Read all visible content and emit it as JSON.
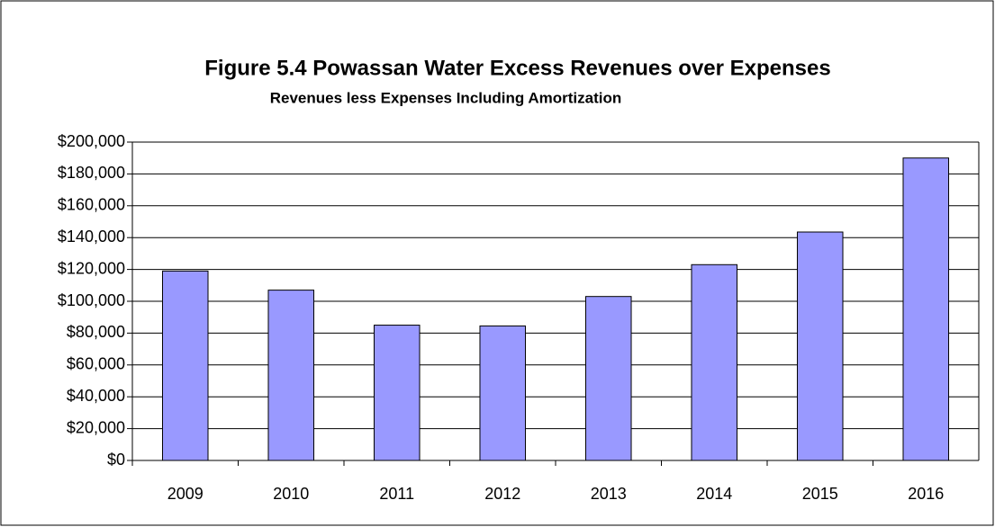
{
  "chart_data": {
    "type": "bar",
    "title": "Figure 5.4  Powassan Water Excess Revenues over Expenses",
    "subtitle": "Revenues less Expenses Including Amortization",
    "categories": [
      "2009",
      "2010",
      "2011",
      "2012",
      "2013",
      "2014",
      "2015",
      "2016"
    ],
    "values": [
      119000,
      107000,
      85000,
      84500,
      103000,
      123000,
      143500,
      190000
    ],
    "color": "#9999ff",
    "ylim": [
      0,
      200000
    ],
    "yticks": [
      {
        "value": 0,
        "label": "$0"
      },
      {
        "value": 20000,
        "label": "$20,000"
      },
      {
        "value": 40000,
        "label": "$40,000"
      },
      {
        "value": 60000,
        "label": "$60,000"
      },
      {
        "value": 80000,
        "label": "$80,000"
      },
      {
        "value": 100000,
        "label": "$100,000"
      },
      {
        "value": 120000,
        "label": "$120,000"
      },
      {
        "value": 140000,
        "label": "$140,000"
      },
      {
        "value": 160000,
        "label": "$160,000"
      },
      {
        "value": 180000,
        "label": "$180,000"
      },
      {
        "value": 200000,
        "label": "$200,000"
      }
    ],
    "grid": true
  }
}
